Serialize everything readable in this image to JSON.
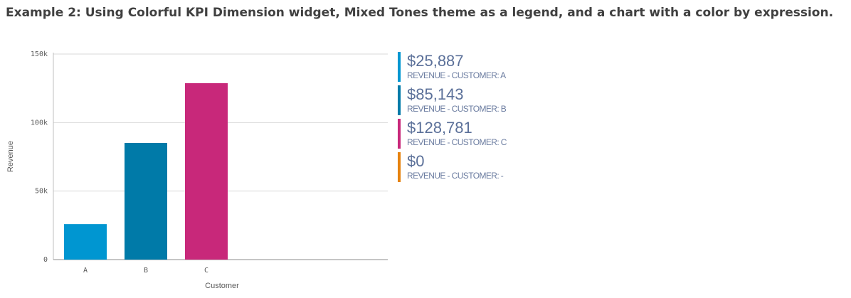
{
  "heading": "Example 2: Using Colorful KPI Dimension widget, Mixed Tones theme as a legend, and a chart with a color by expression.",
  "chart_data": {
    "type": "bar",
    "categories": [
      "A",
      "B",
      "C"
    ],
    "values": [
      25887,
      85143,
      128781
    ],
    "colors": [
      "#0096d1",
      "#007aa8",
      "#c8287a"
    ],
    "ylim": [
      0,
      150000
    ],
    "yticks": [
      0,
      {
        "value": 50000,
        "label": "50k"
      },
      {
        "value": 100000,
        "label": "100k"
      },
      {
        "value": 150000,
        "label": "150k"
      }
    ],
    "grid": true,
    "x_label": "Customer",
    "y_label": "Revenue"
  },
  "kpis": [
    {
      "value": "$25,887",
      "label": "REVENUE - CUSTOMER: A",
      "color": "#0096d1"
    },
    {
      "value": "$85,143",
      "label": "REVENUE - CUSTOMER: B",
      "color": "#007aa8"
    },
    {
      "value": "$128,781",
      "label": "REVENUE - CUSTOMER: C",
      "color": "#c8287a"
    },
    {
      "value": "$0",
      "label": "REVENUE - CUSTOMER: -",
      "color": "#e6820e"
    }
  ]
}
